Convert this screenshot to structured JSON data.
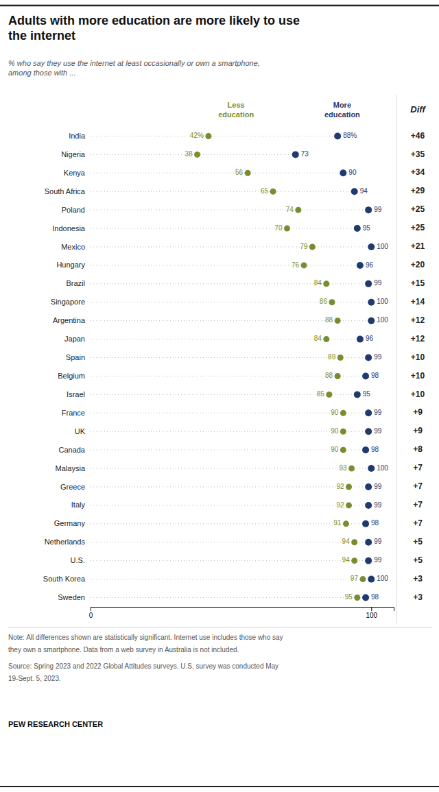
{
  "chart_data": {
    "type": "dot",
    "orientation": "horizontal",
    "title": "Adults with more education are more likely to use\nthe internet",
    "subtitle": "% who say they use the internet at least occasionally or own a smartphone,\namong those with ...",
    "categories": [
      "India",
      "Nigeria",
      "Kenya",
      "South Africa",
      "Poland",
      "Indonesia",
      "Mexico",
      "Hungary",
      "Brazil",
      "Singapore",
      "Argentina",
      "Japan",
      "Spain",
      "Belgium",
      "Israel",
      "France",
      "UK",
      "Canada",
      "Malaysia",
      "Greece",
      "Italy",
      "Germany",
      "Netherlands",
      "U.S.",
      "South Korea",
      "Sweden"
    ],
    "series": [
      {
        "name": "Less\neducation",
        "color": "#7a8c2e",
        "values": [
          42,
          38,
          56,
          65,
          74,
          70,
          79,
          76,
          84,
          86,
          88,
          84,
          89,
          88,
          85,
          90,
          90,
          90,
          93,
          92,
          92,
          91,
          94,
          94,
          97,
          95
        ],
        "value_labels": [
          "42%",
          "38",
          "56",
          "65",
          "74",
          "70",
          "79",
          "76",
          "84",
          "86",
          "88",
          "84",
          "89",
          "88",
          "85",
          "90",
          "90",
          "90",
          "93",
          "92",
          "92",
          "91",
          "94",
          "94",
          "97",
          "95"
        ]
      },
      {
        "name": "More\neducation",
        "color": "#1e3a6e",
        "values": [
          88,
          73,
          90,
          94,
          99,
          95,
          100,
          96,
          99,
          100,
          100,
          96,
          99,
          98,
          95,
          99,
          99,
          98,
          100,
          99,
          99,
          98,
          99,
          99,
          100,
          98
        ],
        "value_labels": [
          "88%",
          "73",
          "90",
          "94",
          "99",
          "95",
          "100",
          "96",
          "99",
          "100",
          "100",
          "96",
          "99",
          "98",
          "95",
          "99",
          "99",
          "98",
          "100",
          "99",
          "99",
          "98",
          "99",
          "99",
          "100",
          "98"
        ]
      }
    ],
    "xlim": [
      0,
      108
    ],
    "xticks": [
      0,
      100
    ],
    "grid": false,
    "legend": "top",
    "data_labels": true,
    "diff": {
      "title": "Diff",
      "labels": [
        "+46",
        "+35",
        "+34",
        "+29",
        "+25",
        "+25",
        "+21",
        "+20",
        "+15",
        "+14",
        "+12",
        "+12",
        "+10",
        "+10",
        "+10",
        "+9",
        "+9",
        "+8",
        "+7",
        "+7",
        "+7",
        "+7",
        "+5",
        "+5",
        "+3",
        "+3"
      ]
    },
    "notes": [
      "Note: All differences shown are statistically significant. Internet use includes those who say",
      "they own a smartphone. Data from a web survey in Australia is not included.",
      "Source: Spring 2023 and 2022 Global Attitudes surveys. U.S. survey was conducted May",
      "19-Sept. 5, 2023."
    ],
    "branding": "PEW RESEARCH CENTER"
  }
}
